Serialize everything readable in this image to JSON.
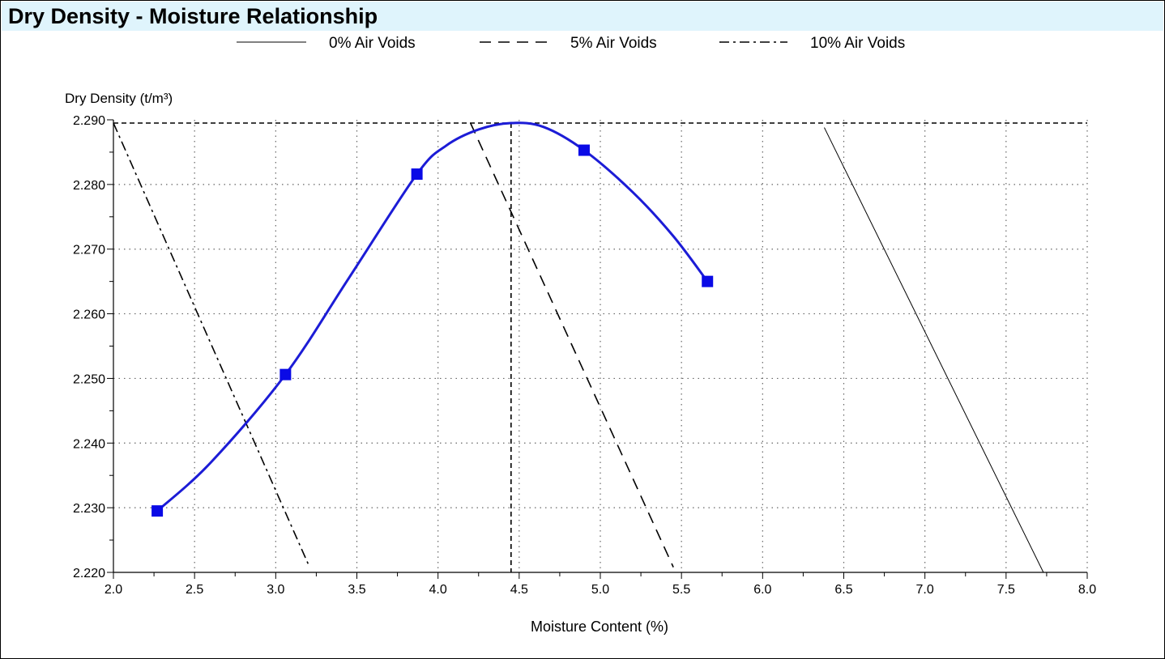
{
  "title": "Dry Density - Moisture Relationship",
  "chart_data": {
    "type": "line",
    "title": "Dry Density - Moisture Relationship",
    "xlabel": "Moisture Content (%)",
    "ylabel": "Dry Density (t/m³)",
    "xlim": [
      2.0,
      8.0
    ],
    "ylim": [
      2.22,
      2.29
    ],
    "x_ticks": [
      "2.0",
      "2.5",
      "3.0",
      "3.5",
      "4.0",
      "4.5",
      "5.0",
      "5.5",
      "6.0",
      "6.5",
      "7.0",
      "7.5",
      "8.0"
    ],
    "y_ticks": [
      "2.220",
      "2.230",
      "2.240",
      "2.250",
      "2.260",
      "2.270",
      "2.280",
      "2.290"
    ],
    "grid": true,
    "legend_position": "top",
    "legend": [
      {
        "name": "0% Air Voids",
        "style": "solid"
      },
      {
        "name": "5% Air Voids",
        "style": "dashed"
      },
      {
        "name": "10% Air Voids",
        "style": "dash-dot"
      }
    ],
    "air_void_lines": [
      {
        "name": "0% Air Voids",
        "style": "solid",
        "points": [
          [
            6.38,
            2.2888
          ],
          [
            7.73,
            2.22
          ]
        ]
      },
      {
        "name": "5% Air Voids",
        "style": "dashed",
        "points": [
          [
            4.2,
            2.2895
          ],
          [
            5.45,
            2.2208
          ]
        ]
      },
      {
        "name": "10% Air Voids",
        "style": "dash-dot",
        "points": [
          [
            2.0,
            2.2895
          ],
          [
            3.2,
            2.2213
          ]
        ]
      }
    ],
    "test_points": [
      {
        "x": 2.27,
        "y": 2.2295
      },
      {
        "x": 3.06,
        "y": 2.2506
      },
      {
        "x": 3.87,
        "y": 2.2816
      },
      {
        "x": 4.9,
        "y": 2.2853
      },
      {
        "x": 5.66,
        "y": 2.265
      }
    ],
    "fitted_curve": [
      [
        2.27,
        2.2295
      ],
      [
        2.6,
        2.237
      ],
      [
        3.06,
        2.2506
      ],
      [
        3.45,
        2.2655
      ],
      [
        3.87,
        2.2816
      ],
      [
        4.05,
        2.286
      ],
      [
        4.25,
        2.2885
      ],
      [
        4.45,
        2.2895
      ],
      [
        4.65,
        2.2889
      ],
      [
        4.9,
        2.2853
      ],
      [
        5.2,
        2.2788
      ],
      [
        5.45,
        2.272
      ],
      [
        5.66,
        2.265
      ]
    ],
    "optimum": {
      "moisture": 4.45,
      "dry_density": 2.2895
    },
    "colors": {
      "curve": "#1c1cd6",
      "points": "#0a0ae6",
      "grid": "#666666",
      "air_voids": "#000000"
    }
  }
}
